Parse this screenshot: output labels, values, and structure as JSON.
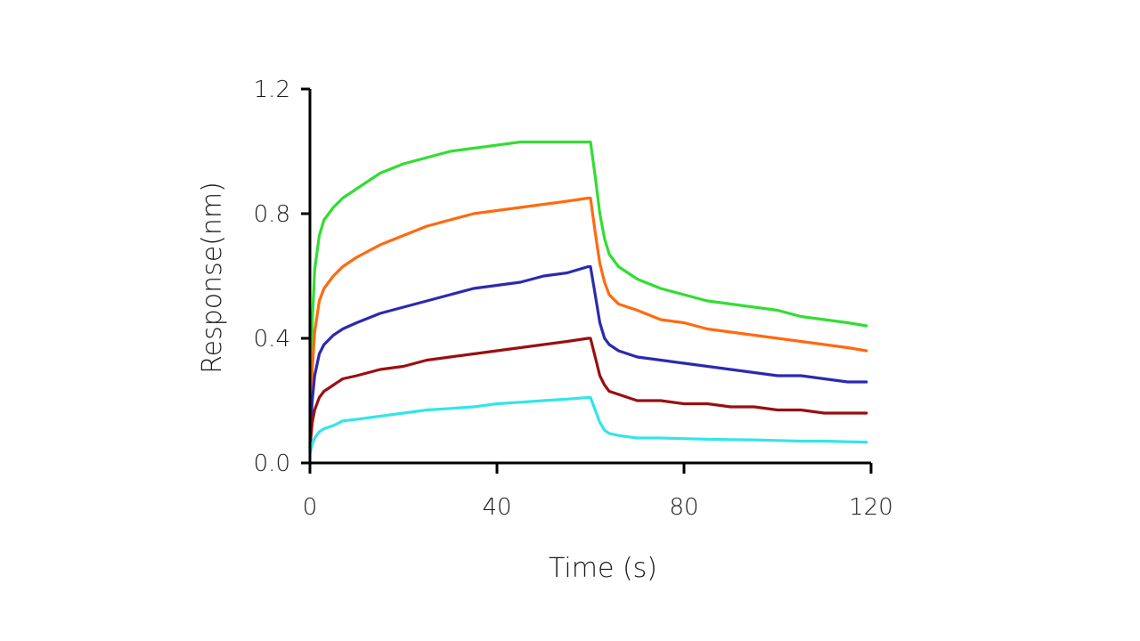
{
  "chart_data": {
    "type": "line",
    "title": "",
    "xlabel": "Time (s)",
    "ylabel": "Response(nm)",
    "xlim": [
      0,
      120
    ],
    "ylim": [
      0,
      1.2
    ],
    "x_ticks": [
      0,
      40,
      80,
      120
    ],
    "x_tick_labels": [
      "0",
      "40",
      "80",
      "120"
    ],
    "y_ticks": [
      0,
      0.4,
      0.8,
      1.2
    ],
    "y_tick_labels": [
      "0.0",
      "0.4",
      "0.8",
      "1.2"
    ],
    "grid": false,
    "x": [
      0,
      0.5,
      1,
      2,
      3,
      5,
      7,
      10,
      15,
      20,
      25,
      30,
      35,
      40,
      45,
      50,
      55,
      59.5,
      60,
      61,
      62,
      63,
      64,
      66,
      70,
      75,
      80,
      85,
      90,
      95,
      100,
      105,
      110,
      115,
      119
    ],
    "series": [
      {
        "color": "#33dd33",
        "values": [
          0.05,
          0.45,
          0.62,
          0.73,
          0.78,
          0.82,
          0.85,
          0.88,
          0.93,
          0.96,
          0.98,
          1.0,
          1.01,
          1.02,
          1.03,
          1.03,
          1.03,
          1.03,
          1.03,
          0.92,
          0.8,
          0.72,
          0.67,
          0.63,
          0.59,
          0.56,
          0.54,
          0.52,
          0.51,
          0.5,
          0.49,
          0.47,
          0.46,
          0.45,
          0.44
        ]
      },
      {
        "color": "#ff6a10",
        "values": [
          0.08,
          0.3,
          0.42,
          0.52,
          0.56,
          0.6,
          0.63,
          0.66,
          0.7,
          0.73,
          0.76,
          0.78,
          0.8,
          0.81,
          0.82,
          0.83,
          0.84,
          0.85,
          0.85,
          0.74,
          0.64,
          0.58,
          0.54,
          0.51,
          0.49,
          0.46,
          0.45,
          0.43,
          0.42,
          0.41,
          0.4,
          0.39,
          0.38,
          0.37,
          0.36
        ]
      },
      {
        "color": "#2a2ab0",
        "values": [
          0.06,
          0.2,
          0.28,
          0.35,
          0.38,
          0.41,
          0.43,
          0.45,
          0.48,
          0.5,
          0.52,
          0.54,
          0.56,
          0.57,
          0.58,
          0.6,
          0.61,
          0.63,
          0.63,
          0.54,
          0.45,
          0.4,
          0.38,
          0.36,
          0.34,
          0.33,
          0.32,
          0.31,
          0.3,
          0.29,
          0.28,
          0.28,
          0.27,
          0.26,
          0.26
        ]
      },
      {
        "color": "#9a0f0f",
        "values": [
          0.05,
          0.13,
          0.17,
          0.21,
          0.23,
          0.25,
          0.27,
          0.28,
          0.3,
          0.31,
          0.33,
          0.34,
          0.35,
          0.36,
          0.37,
          0.38,
          0.39,
          0.4,
          0.4,
          0.34,
          0.28,
          0.25,
          0.23,
          0.22,
          0.2,
          0.2,
          0.19,
          0.19,
          0.18,
          0.18,
          0.17,
          0.17,
          0.16,
          0.16,
          0.16
        ]
      },
      {
        "color": "#33e5e8",
        "values": [
          0.03,
          0.06,
          0.08,
          0.1,
          0.11,
          0.12,
          0.135,
          0.14,
          0.15,
          0.16,
          0.17,
          0.175,
          0.18,
          0.19,
          0.195,
          0.2,
          0.205,
          0.21,
          0.21,
          0.17,
          0.13,
          0.105,
          0.095,
          0.088,
          0.08,
          0.08,
          0.078,
          0.076,
          0.075,
          0.074,
          0.072,
          0.07,
          0.07,
          0.068,
          0.067
        ]
      }
    ]
  }
}
